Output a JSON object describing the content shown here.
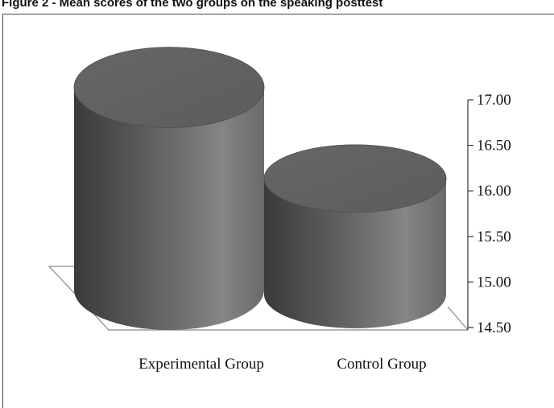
{
  "figure_title": "Figure 2 - Mean scores of the two groups on the speaking posttest",
  "chart_data": {
    "type": "bar",
    "style": "3d-cylinder",
    "categories": [
      "Experimental Group",
      "Control Group"
    ],
    "values": [
      16.8,
      15.8
    ],
    "ylim": [
      14.5,
      17.0
    ],
    "yticks": [
      "14.50",
      "15.00",
      "15.50",
      "16.00",
      "16.50",
      "17.00"
    ],
    "axis_side": "right",
    "grid": false,
    "legend": "none",
    "bar_color": "#6e6e6e"
  }
}
